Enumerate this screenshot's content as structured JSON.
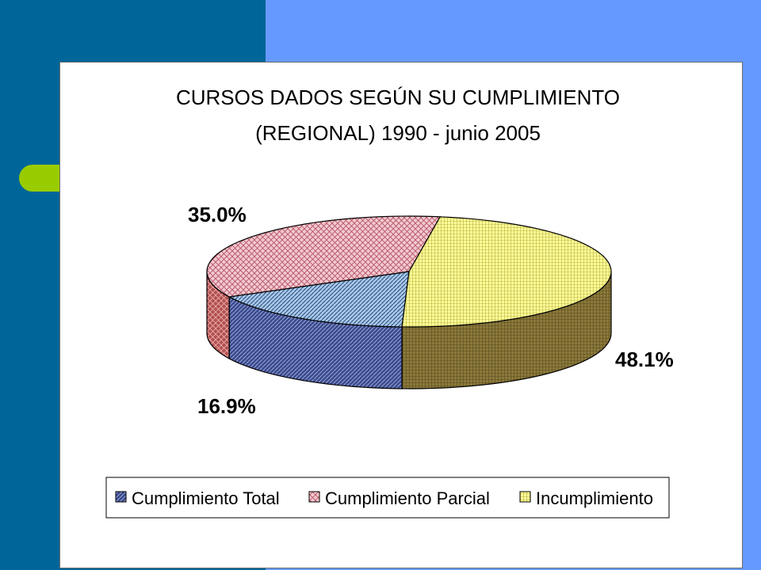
{
  "chart_data": {
    "type": "pie",
    "title_lines": [
      "CURSOS DADOS SEGÚN SU CUMPLIMIENTO",
      "(REGIONAL) 1990 - junio 2005"
    ],
    "slices": [
      {
        "name": "Cumplimiento Total",
        "value": 16.9,
        "label": "16.9%",
        "color": "#a8c8e8",
        "side_color": "#3a4a8c"
      },
      {
        "name": "Cumplimiento Parcial",
        "value": 35.0,
        "label": "35.0%",
        "color": "#f4c8d0",
        "side_color": "#b05050"
      },
      {
        "name": "Incumplimiento",
        "value": 48.1,
        "label": "48.1%",
        "color": "#ffff99",
        "side_color": "#8b7a3a"
      }
    ],
    "legend_position": "bottom"
  },
  "colors": {
    "background_left": "#006699",
    "background_right": "#6699ff",
    "accent": "#99cc00",
    "frame": "#ffffff"
  }
}
